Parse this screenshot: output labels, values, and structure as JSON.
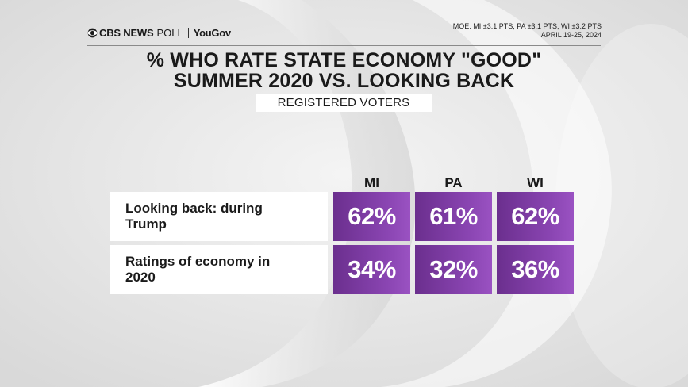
{
  "header": {
    "brand": "CBS NEWS",
    "poll_word": "POLL",
    "partner": "YouGov",
    "moe": "MOE: MI ±3.1 PTS, PA ±3.1 PTS, WI ±3.2 PTS",
    "dates": "APRIL 19-25, 2024"
  },
  "chart_data": {
    "type": "table",
    "title_line1": "% WHO RATE STATE ECONOMY \"GOOD\"",
    "title_line2": "SUMMER 2020 VS. LOOKING BACK",
    "subtitle": "REGISTERED VOTERS",
    "columns": [
      "MI",
      "PA",
      "WI"
    ],
    "rows": [
      {
        "label": "Looking back: during Trump",
        "values": [
          "62%",
          "61%",
          "62%"
        ]
      },
      {
        "label": "Ratings of economy in 2020",
        "values": [
          "34%",
          "32%",
          "36%"
        ]
      }
    ],
    "cell_color": "#7b3aa3"
  }
}
